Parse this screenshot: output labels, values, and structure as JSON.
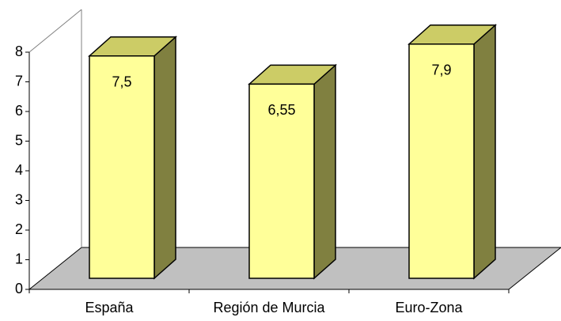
{
  "chart_data": {
    "type": "bar3d",
    "categories": [
      "España",
      "Región de Murcia",
      "Euro-Zona"
    ],
    "values": [
      7.5,
      6.55,
      7.9
    ],
    "value_labels": [
      "7,5",
      "6,55",
      "7,9"
    ],
    "color": "#ffff99",
    "ylim": [
      0,
      8
    ],
    "yticks": [
      0,
      1,
      2,
      3,
      4,
      5,
      6,
      7,
      8
    ]
  }
}
